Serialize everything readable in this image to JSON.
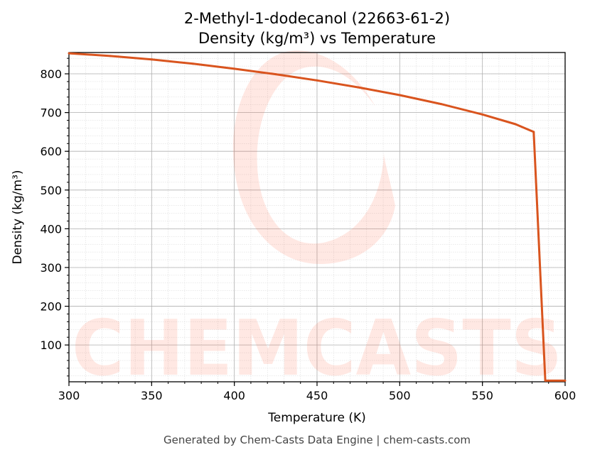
{
  "footer_text": "Generated by Chem-Casts Data Engine | chem-casts.com",
  "watermark_text": "CHEMCASTS",
  "colors": {
    "line": "#d9541e",
    "watermark": "#ff4a2a",
    "grid_major": "#b0b0b0",
    "grid_minor": "#d6d6d6"
  },
  "chart_data": {
    "type": "line",
    "title": "2-Methyl-1-dodecanol (22663-61-2)",
    "subtitle": "Density (kg/m³) vs Temperature",
    "xlabel": "Temperature (K)",
    "ylabel": "Density (kg/m³)",
    "xlim": [
      300,
      600
    ],
    "ylim": [
      5,
      855
    ],
    "xticks": [
      300,
      350,
      400,
      450,
      500,
      550,
      600
    ],
    "yticks": [
      100,
      200,
      300,
      400,
      500,
      600,
      700,
      800
    ],
    "grid": true,
    "series": [
      {
        "x": [
          300,
          325,
          350,
          375,
          400,
          425,
          450,
          475,
          500,
          525,
          550,
          570,
          581,
          588,
          600
        ],
        "y": [
          853,
          846,
          837,
          826,
          813,
          799,
          783,
          765,
          745,
          722,
          695,
          670,
          650,
          8,
          8
        ]
      }
    ]
  }
}
